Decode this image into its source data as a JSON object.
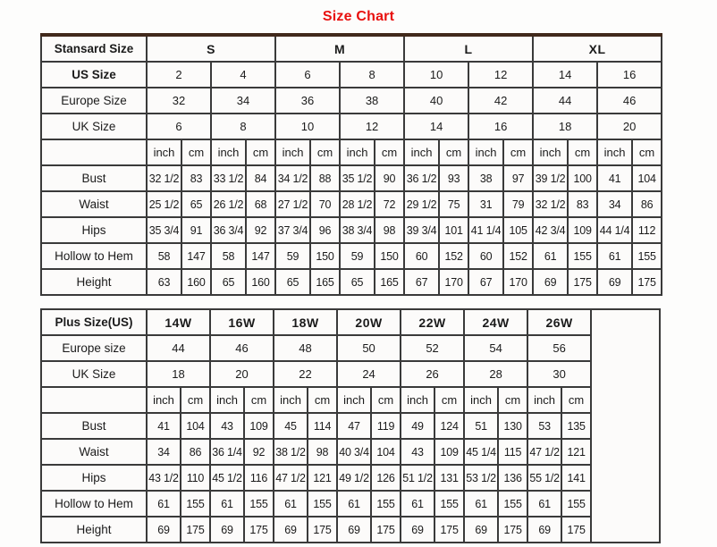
{
  "page": {
    "title": "Size Chart",
    "title_color": "#e8100e"
  },
  "standard_table": {
    "header_label": "Stansard Size",
    "size_groups": [
      "S",
      "M",
      "L",
      "XL"
    ],
    "rows_top": [
      {
        "label": "US Size",
        "bold": true,
        "values": [
          "2",
          "4",
          "6",
          "8",
          "10",
          "12",
          "14",
          "16"
        ]
      },
      {
        "label": "Europe Size",
        "bold": false,
        "values": [
          "32",
          "34",
          "36",
          "38",
          "40",
          "42",
          "44",
          "46"
        ]
      },
      {
        "label": "UK Size",
        "bold": false,
        "values": [
          "6",
          "8",
          "10",
          "12",
          "14",
          "16",
          "18",
          "20"
        ]
      }
    ],
    "unit_row": [
      "inch",
      "cm",
      "inch",
      "cm",
      "inch",
      "cm",
      "inch",
      "cm",
      "inch",
      "cm",
      "inch",
      "cm",
      "inch",
      "cm",
      "inch",
      "cm"
    ],
    "measure_rows": [
      {
        "label": "Bust",
        "values": [
          "32 1/2",
          "83",
          "33 1/2",
          "84",
          "34 1/2",
          "88",
          "35 1/2",
          "90",
          "36 1/2",
          "93",
          "38",
          "97",
          "39 1/2",
          "100",
          "41",
          "104"
        ]
      },
      {
        "label": "Waist",
        "values": [
          "25 1/2",
          "65",
          "26 1/2",
          "68",
          "27 1/2",
          "70",
          "28 1/2",
          "72",
          "29 1/2",
          "75",
          "31",
          "79",
          "32 1/2",
          "83",
          "34",
          "86"
        ]
      },
      {
        "label": "Hips",
        "values": [
          "35 3/4",
          "91",
          "36 3/4",
          "92",
          "37 3/4",
          "96",
          "38 3/4",
          "98",
          "39 3/4",
          "101",
          "41 1/4",
          "105",
          "42 3/4",
          "109",
          "44 1/4",
          "112"
        ]
      },
      {
        "label": "Hollow to Hem",
        "values": [
          "58",
          "147",
          "58",
          "147",
          "59",
          "150",
          "59",
          "150",
          "60",
          "152",
          "60",
          "152",
          "61",
          "155",
          "61",
          "155"
        ]
      },
      {
        "label": "Height",
        "values": [
          "63",
          "160",
          "65",
          "160",
          "65",
          "165",
          "65",
          "165",
          "67",
          "170",
          "67",
          "170",
          "69",
          "175",
          "69",
          "175"
        ]
      }
    ]
  },
  "plus_table": {
    "header_label": "Plus Size(US)",
    "size_groups": [
      "14W",
      "16W",
      "18W",
      "20W",
      "22W",
      "24W",
      "26W"
    ],
    "rows_top": [
      {
        "label": "Europe size",
        "bold": false,
        "values": [
          "44",
          "46",
          "48",
          "50",
          "52",
          "54",
          "56"
        ]
      },
      {
        "label": "UK Size",
        "bold": false,
        "values": [
          "18",
          "20",
          "22",
          "24",
          "26",
          "28",
          "30"
        ]
      }
    ],
    "unit_row": [
      "inch",
      "cm",
      "inch",
      "cm",
      "inch",
      "cm",
      "inch",
      "cm",
      "inch",
      "cm",
      "inch",
      "cm",
      "inch",
      "cm"
    ],
    "measure_rows": [
      {
        "label": "Bust",
        "values": [
          "41",
          "104",
          "43",
          "109",
          "45",
          "114",
          "47",
          "119",
          "49",
          "124",
          "51",
          "130",
          "53",
          "135"
        ]
      },
      {
        "label": "Waist",
        "values": [
          "34",
          "86",
          "36 1/4",
          "92",
          "38 1/2",
          "98",
          "40 3/4",
          "104",
          "43",
          "109",
          "45 1/4",
          "115",
          "47 1/2",
          "121"
        ]
      },
      {
        "label": "Hips",
        "values": [
          "43 1/2",
          "110",
          "45 1/2",
          "116",
          "47 1/2",
          "121",
          "49 1/2",
          "126",
          "51 1/2",
          "131",
          "53 1/2",
          "136",
          "55 1/2",
          "141"
        ]
      },
      {
        "label": "Hollow to Hem",
        "values": [
          "61",
          "155",
          "61",
          "155",
          "61",
          "155",
          "61",
          "155",
          "61",
          "155",
          "61",
          "155",
          "61",
          "155"
        ]
      },
      {
        "label": "Height",
        "values": [
          "69",
          "175",
          "69",
          "175",
          "69",
          "175",
          "69",
          "175",
          "69",
          "175",
          "69",
          "175",
          "69",
          "175"
        ]
      }
    ]
  }
}
